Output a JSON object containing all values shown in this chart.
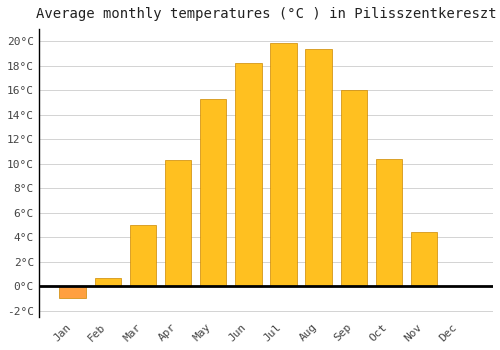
{
  "title": "Average monthly temperatures (°C ) in Pilisszentkereszt",
  "months": [
    "Jan",
    "Feb",
    "Mar",
    "Apr",
    "May",
    "Jun",
    "Jul",
    "Aug",
    "Sep",
    "Oct",
    "Nov",
    "Dec"
  ],
  "values": [
    -1.0,
    0.7,
    5.0,
    10.3,
    15.3,
    18.2,
    19.9,
    19.4,
    16.0,
    10.4,
    4.4,
    0.0
  ],
  "bar_color_positive": "#FFC020",
  "bar_color_negative": "#FFA040",
  "bar_edge_color": "#CC8800",
  "background_color": "#FFFFFF",
  "grid_color": "#CCCCCC",
  "zero_line_color": "#000000",
  "ylim": [
    -2.5,
    21
  ],
  "yticks": [
    -2,
    0,
    2,
    4,
    6,
    8,
    10,
    12,
    14,
    16,
    18,
    20
  ],
  "ytick_labels": [
    "-2°C",
    "0°C",
    "2°C",
    "4°C",
    "6°C",
    "8°C",
    "10°C",
    "12°C",
    "14°C",
    "16°C",
    "18°C",
    "20°C"
  ],
  "title_fontsize": 10,
  "tick_fontsize": 8
}
